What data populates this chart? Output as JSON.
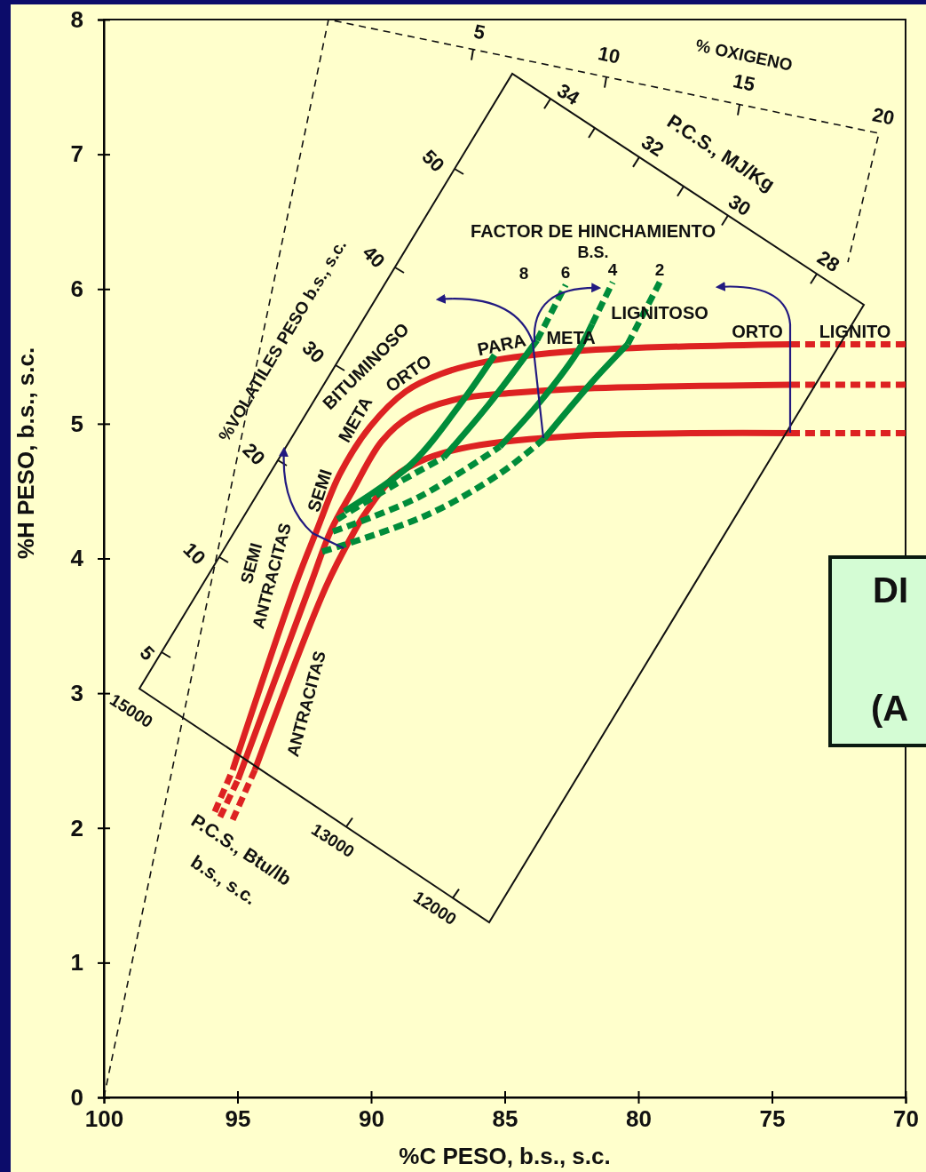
{
  "chart_data": {
    "type": "line",
    "xlabel": "%C PESO, b.s., s.c.",
    "ylabel": "%H PESO, b.s., s.c.",
    "xlim": [
      100,
      70
    ],
    "ylim": [
      0,
      8
    ],
    "xticks": [
      100,
      95,
      90,
      85,
      80,
      75,
      70
    ],
    "yticks": [
      0,
      1,
      2,
      3,
      4,
      5,
      6,
      7,
      8
    ],
    "grid": false,
    "legend": false,
    "marker": "none",
    "series": [
      {
        "color": "#dd2222",
        "line_style": "dashed",
        "x": [
          95.85,
          95.18
        ],
        "values": [
          2.12,
          2.43
        ]
      },
      {
        "color": "#dd2222",
        "line_style": "solid",
        "x": [
          95.18,
          92.82,
          92.03,
          91.16,
          90.03,
          88.7,
          87.38,
          85.71,
          82.29,
          74.32
        ],
        "values": [
          2.43,
          3.81,
          4.21,
          4.63,
          4.98,
          5.24,
          5.37,
          5.46,
          5.54,
          5.59
        ]
      },
      {
        "color": "#dd2222",
        "line_style": "dashed",
        "x": [
          74.32,
          70
        ],
        "values": [
          5.59,
          5.59
        ]
      },
      {
        "color": "#dd2222",
        "line_style": "dashed",
        "x": [
          95.65,
          94.98
        ],
        "values": [
          2.08,
          2.36
        ]
      },
      {
        "color": "#dd2222",
        "line_style": "solid",
        "x": [
          94.98,
          92.26,
          91.5,
          90.7,
          89.6,
          88.5,
          86.84,
          84.62,
          82.29,
          74.32
        ],
        "values": [
          2.36,
          3.81,
          4.21,
          4.5,
          4.87,
          5.06,
          5.18,
          5.23,
          5.26,
          5.29
        ]
      },
      {
        "color": "#dd2222",
        "line_style": "dashed",
        "x": [
          74.32,
          70
        ],
        "values": [
          5.29,
          5.29
        ]
      },
      {
        "color": "#dd2222",
        "line_style": "dashed",
        "x": [
          95.18,
          94.35
        ],
        "values": [
          2.06,
          2.43
        ]
      },
      {
        "color": "#dd2222",
        "line_style": "solid",
        "x": [
          94.35,
          91.69,
          90.66,
          90.27,
          89.17,
          87.94,
          86.28,
          82.29,
          74.32
        ],
        "values": [
          2.43,
          3.79,
          4.19,
          4.32,
          4.6,
          4.74,
          4.83,
          4.91,
          4.93
        ]
      },
      {
        "color": "#dd2222",
        "line_style": "dashed",
        "x": [
          74.32,
          70
        ],
        "values": [
          4.93,
          4.93
        ]
      },
      {
        "name": "8",
        "color": "#008c3a",
        "line_style": "solid",
        "x": [
          91.0,
          88.5,
          86.61,
          85.38
        ],
        "values": [
          4.35,
          4.7,
          5.16,
          5.51
        ]
      },
      {
        "color": "#008c3a",
        "line_style": "dashed",
        "x": [
          91.26,
          89.27,
          87.28
        ],
        "values": [
          4.29,
          4.53,
          4.75
        ]
      },
      {
        "color": "#008c3a",
        "line_style": "solid",
        "x": [
          87.28,
          85.61,
          83.79
        ],
        "values": [
          4.75,
          5.14,
          5.62
        ]
      },
      {
        "name": "6",
        "color": "#008c3a",
        "line_style": "dashed",
        "x": [
          83.79,
          82.72
        ],
        "values": [
          5.62,
          6.03
        ]
      },
      {
        "color": "#008c3a",
        "line_style": "dashed",
        "x": [
          91.43,
          88.27,
          85.18
        ],
        "values": [
          4.2,
          4.45,
          4.83
        ]
      },
      {
        "color": "#008c3a",
        "line_style": "solid",
        "x": [
          85.18,
          83.69,
          82.29,
          81.73
        ],
        "values": [
          4.83,
          5.16,
          5.53,
          5.74
        ]
      },
      {
        "name": "4",
        "color": "#008c3a",
        "line_style": "dashed",
        "x": [
          81.73,
          80.96
        ],
        "values": [
          5.74,
          6.05
        ]
      },
      {
        "color": "#008c3a",
        "line_style": "dashed",
        "x": [
          91.83,
          87.94,
          85.18,
          83.52
        ],
        "values": [
          4.05,
          4.32,
          4.63,
          4.89
        ]
      },
      {
        "color": "#008c3a",
        "line_style": "solid",
        "x": [
          83.52,
          81.73,
          80.4
        ],
        "values": [
          4.89,
          5.31,
          5.59
        ]
      },
      {
        "name": "2",
        "color": "#008c3a",
        "line_style": "dashed",
        "x": [
          80.4,
          79.2
        ],
        "values": [
          5.59,
          6.05
        ]
      }
    ],
    "annotations": [
      "% OXIGENO",
      "5",
      "10",
      "15",
      "20",
      "P.C.S., MJ/Kg",
      "34",
      "32",
      "30",
      "28",
      "%VOLATILES PESO b.s., s.c.",
      "50",
      "40",
      "30",
      "20",
      "10",
      "5",
      "P.C.S., Btu/lb",
      "b.s., s.c.",
      "15000",
      "13000",
      "12000",
      "FACTOR DE HINCHAMIENTO",
      "B.S.",
      "BITUMINOSO",
      "ORTO",
      "META",
      "SEMI",
      "PARA",
      "META",
      "LIGNITOSO",
      "ORTO",
      "LIGNITO",
      "SEMI",
      "ANTRACITAS",
      "ANTRACITAS",
      "DI",
      "(A"
    ]
  }
}
